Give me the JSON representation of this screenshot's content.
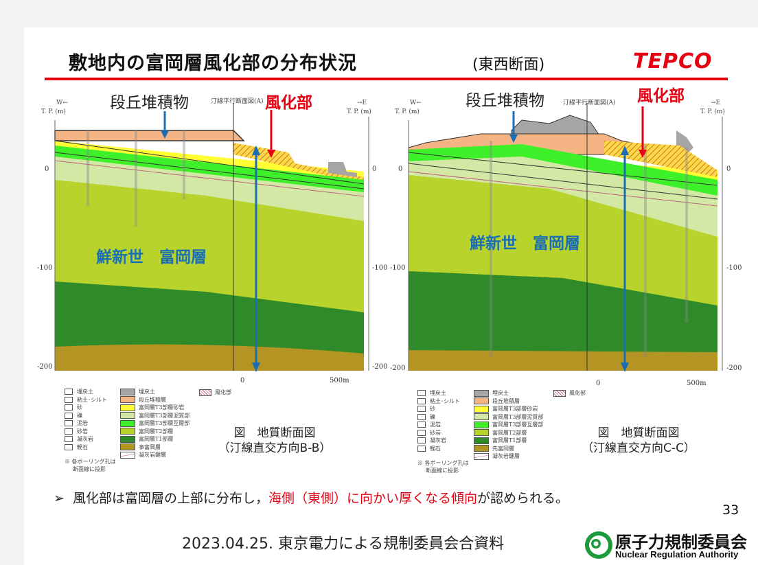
{
  "header": {
    "title": "敷地内の富岡層風化部の分布状況",
    "subtitle": "(東西断面)",
    "logo": "TEPCO"
  },
  "sections": [
    {
      "id": "B-B",
      "annot_terrace": "段丘堆積物",
      "annot_weathered": "風化部",
      "annot_formation": "鮮新世　富岡層",
      "west": "W←",
      "east": "→E",
      "tp_left": "T. P. (m)",
      "tp_right": "T. P. (m)",
      "inset": "汀線平行断面図(A)",
      "yticks": [
        "0",
        "-100",
        "-200"
      ],
      "scale_zero": "0",
      "scale_max": "500m",
      "caption1": "図　地質断面図",
      "caption2": "（汀線直交方向B-B）"
    },
    {
      "id": "C-C",
      "annot_terrace": "段丘堆積物",
      "annot_weathered": "風化部",
      "annot_formation": "鮮新世　富岡層",
      "west": "W←",
      "east": "→E",
      "tp_left": "T. P. (m)",
      "tp_right": "T. P. (m)",
      "inset": "汀線平行断面図(A)",
      "yticks": [
        "0",
        "-100",
        "-200"
      ],
      "scale_zero": "0",
      "scale_max": "500m",
      "caption1": "図　地質断面図",
      "caption2": "（汀線直交方向C-C）"
    }
  ],
  "legend": {
    "boring": [
      "埋戻土",
      "粘土･シルト",
      "砂",
      "礫",
      "泥岩",
      "砂岩",
      "凝灰岩",
      "軽石"
    ],
    "boring_note1": "※ 各ボーリング孔は",
    "boring_note2": "断面線に投影",
    "units_left": [
      {
        "label": "埋戻土",
        "color": "#a6a6a6"
      },
      {
        "label": "段丘堆積層",
        "color": "#f5b483"
      },
      {
        "label": "富岡層T3部層砂岩",
        "color": "#ffff33"
      },
      {
        "label": "富岡層T3部層泥質部",
        "color": "#d2e8a4"
      },
      {
        "label": "富岡層T3部層互層部",
        "color": "#3ef02a"
      },
      {
        "label": "富岡層T2部層",
        "color": "#b8d42c"
      },
      {
        "label": "富岡層T1部層",
        "color": "#2f8a2a"
      },
      {
        "label": "亊富岡層",
        "color": "#b49422"
      },
      {
        "label": "凝灰岩鍵層",
        "color": "#ffffff"
      }
    ],
    "units_right": [
      {
        "label": "埋戻土",
        "color": "#a6a6a6"
      },
      {
        "label": "段丘堆積層",
        "color": "#f5b483"
      },
      {
        "label": "富岡層T3部層砂岩",
        "color": "#ffff33"
      },
      {
        "label": "富岡層T3部層泥質部",
        "color": "#d2e8a4"
      },
      {
        "label": "富岡層T3部層互層部",
        "color": "#3ef02a"
      },
      {
        "label": "富岡層T2部層",
        "color": "#b8d42c"
      },
      {
        "label": "富岡層T1部層",
        "color": "#2f8a2a"
      },
      {
        "label": "先富岡層",
        "color": "#b49422"
      },
      {
        "label": "凝灰岩鍵層",
        "color": "#ffffff"
      }
    ],
    "weathered": "風化部"
  },
  "bullet": {
    "mark": "➢",
    "text1": "風化部は富岡層の上部に分布し，",
    "text_red": "海側（東側）に向かい厚くなる傾向",
    "text2": "が認められる。"
  },
  "page_number": "33",
  "footer": "2023.04.25. 東京電力による規制委員会合資料",
  "nra": {
    "name_jp": "原子力規制委員会",
    "name_en": "Nuclear Regulation Authority"
  },
  "colors": {
    "red": "#e60012",
    "blue": "#1a6fb4",
    "nra_green": "#1e9a3a"
  }
}
